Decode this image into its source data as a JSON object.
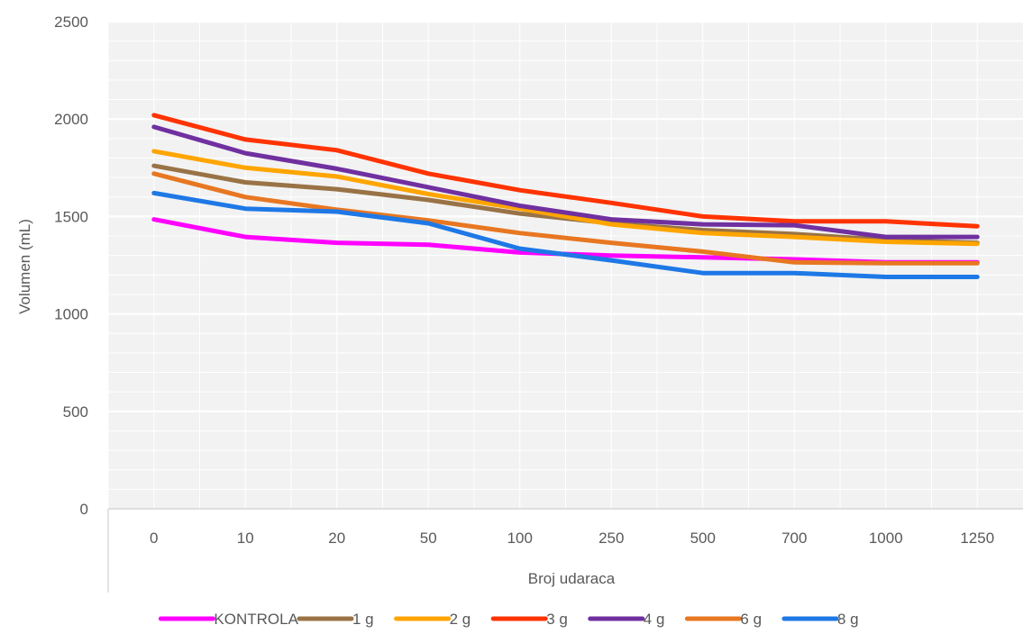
{
  "chart_data": {
    "type": "line",
    "title": "",
    "xlabel": "Broj udaraca",
    "ylabel": "Volumen (mL)",
    "categories": [
      "0",
      "10",
      "20",
      "50",
      "100",
      "250",
      "500",
      "700",
      "1000",
      "1250"
    ],
    "ylim": [
      0,
      2500
    ],
    "yticks": [
      0,
      500,
      1000,
      1500,
      2000,
      2500
    ],
    "grid": true,
    "legend_position": "bottom",
    "series": [
      {
        "name": "KONTROLA",
        "color": "#FF00FF",
        "values": [
          1485,
          1395,
          1365,
          1355,
          1315,
          1300,
          1290,
          1280,
          1265,
          1265
        ]
      },
      {
        "name": "1 g",
        "color": "#997346",
        "values": [
          1760,
          1675,
          1640,
          1585,
          1515,
          1465,
          1430,
          1410,
          1380,
          1365
        ]
      },
      {
        "name": "2 g",
        "color": "#FFA500",
        "values": [
          1835,
          1750,
          1705,
          1615,
          1540,
          1460,
          1415,
          1395,
          1370,
          1360
        ]
      },
      {
        "name": "3 g",
        "color": "#FF3300",
        "values": [
          2020,
          1895,
          1840,
          1720,
          1635,
          1570,
          1500,
          1475,
          1475,
          1450
        ]
      },
      {
        "name": "4 g",
        "color": "#7030A0",
        "values": [
          1960,
          1825,
          1745,
          1650,
          1555,
          1485,
          1460,
          1455,
          1395,
          1395
        ]
      },
      {
        "name": "6 g",
        "color": "#E87722",
        "values": [
          1720,
          1600,
          1535,
          1480,
          1415,
          1365,
          1320,
          1265,
          1260,
          1260
        ]
      },
      {
        "name": "8 g",
        "color": "#1E78E6",
        "values": [
          1620,
          1540,
          1525,
          1465,
          1335,
          1275,
          1210,
          1210,
          1190,
          1190
        ]
      }
    ]
  }
}
